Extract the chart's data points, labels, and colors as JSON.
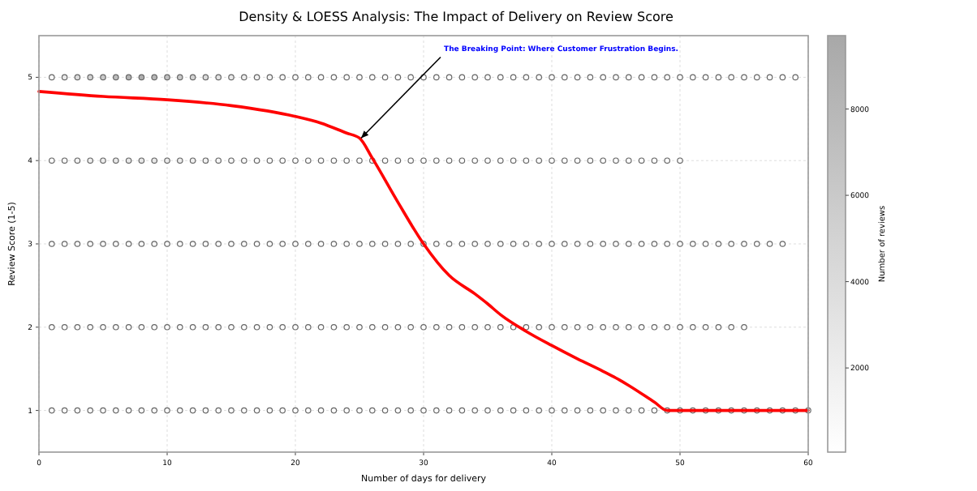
{
  "chart_data": {
    "type": "scatter",
    "title": "Density & LOESS Analysis: The Impact of Delivery on Review Score",
    "xlabel": "Number of days for delivery",
    "ylabel": "Review Score (1-5)",
    "clabel": "Number of reviews",
    "xlim": [
      0,
      60
    ],
    "ylim": [
      0.5,
      5.5
    ],
    "xticks": [
      0,
      10,
      20,
      30,
      40,
      50,
      60
    ],
    "yticks": [
      1,
      2,
      3,
      4,
      5
    ],
    "clim": [
      50,
      9700
    ],
    "cticks": [
      2000,
      4000,
      6000,
      8000
    ],
    "grid": true,
    "annotations": [
      {
        "text": "The Breaking Point: Where Customer Frustration Begins.",
        "x": 25,
        "y": 4.25
      }
    ],
    "series": [
      {
        "marker": "circle",
        "x": [
          1,
          2,
          3,
          4,
          5,
          6,
          7,
          8,
          9,
          10,
          11,
          12,
          13,
          14,
          15,
          16,
          17,
          18,
          19,
          20,
          21,
          22,
          23,
          24,
          25,
          26,
          27,
          28,
          29,
          30,
          31,
          32,
          33,
          34,
          35,
          36,
          37,
          38,
          39,
          40,
          41,
          42,
          43,
          44,
          45,
          46,
          47,
          48,
          49,
          50,
          51,
          52,
          53,
          54,
          55,
          56,
          57,
          58,
          59
        ],
        "values": [
          5,
          5,
          5,
          5,
          5,
          5,
          5,
          5,
          5,
          5,
          5,
          5,
          5,
          5,
          5,
          5,
          5,
          5,
          5,
          5,
          5,
          5,
          5,
          5,
          5,
          5,
          5,
          5,
          5,
          5,
          5,
          5,
          5,
          5,
          5,
          5,
          5,
          5,
          5,
          5,
          5,
          5,
          5,
          5,
          5,
          5,
          5,
          5,
          5,
          5,
          5,
          5,
          5,
          5,
          5,
          5,
          5,
          5,
          5
        ],
        "colors": [
          "#fbfbfb",
          "#e9e9e9",
          "#dbdbdb",
          "#d2d2d2",
          "#c9c9c9",
          "#bcbcbc",
          "#b3b3b3",
          "#aeaeae",
          "#b7b7b7",
          "#c0c0c0",
          "#c9c9c9",
          "#d2d2d2",
          "#dbdbdb",
          "#e3e3e3",
          "#e9e9e9",
          "#ededed",
          "#f1f1f1",
          "#f4f4f4",
          "#f6f6f6",
          "#f8f8f8",
          "#f9f9f9",
          "#fbfbfb",
          "#fcfcfc",
          "#fcfcfc",
          "#fdfdfd",
          "#fdfdfd",
          "#fefefe",
          "#fefefe",
          "#fefefe",
          "#fefefe",
          "#fefefe",
          "#fefefe",
          "#ffffff",
          "#ffffff",
          "#ffffff",
          "#ffffff",
          "#ffffff",
          "#ffffff",
          "#ffffff",
          "#ffffff",
          "#ffffff",
          "#ffffff",
          "#ffffff",
          "#ffffff",
          "#ffffff",
          "#ffffff",
          "#ffffff",
          "#ffffff",
          "#ffffff",
          "#ffffff",
          "#ffffff",
          "#ffffff",
          "#ffffff",
          "#ffffff",
          "#ffffff",
          "#ffffff",
          "#ffffff",
          "#ffffff",
          "#ffffff"
        ]
      },
      {
        "marker": "circle",
        "x": [
          1,
          2,
          3,
          4,
          5,
          6,
          7,
          8,
          9,
          10,
          11,
          12,
          13,
          14,
          15,
          16,
          17,
          18,
          19,
          20,
          21,
          22,
          23,
          24,
          25,
          26,
          27,
          28,
          29,
          30,
          31,
          32,
          33,
          34,
          35,
          36,
          37,
          38,
          39,
          40,
          41,
          42,
          43,
          44,
          45,
          46,
          47,
          48,
          49,
          50
        ],
        "values": [
          4,
          4,
          4,
          4,
          4,
          4,
          4,
          4,
          4,
          4,
          4,
          4,
          4,
          4,
          4,
          4,
          4,
          4,
          4,
          4,
          4,
          4,
          4,
          4,
          4,
          4,
          4,
          4,
          4,
          4,
          4,
          4,
          4,
          4,
          4,
          4,
          4,
          4,
          4,
          4,
          4,
          4,
          4,
          4,
          4,
          4,
          4,
          4,
          4,
          4
        ],
        "colors": [
          "#fefefe",
          "#f8f8f8",
          "#f4f4f4",
          "#f0f0f0",
          "#ededed",
          "#eaeaea",
          "#e8e8e8",
          "#e7e7e7",
          "#e9e9e9",
          "#ebebeb",
          "#ededed",
          "#f0f0f0",
          "#f3f3f3",
          "#f6f6f6",
          "#f7f7f7",
          "#f9f9f9",
          "#fafafa",
          "#fbfbfb",
          "#fcfcfc",
          "#fcfcfc",
          "#fdfdfd",
          "#fdfdfd",
          "#fefefe",
          "#fefefe",
          "#fefefe",
          "#fefefe",
          "#fefefe",
          "#ffffff",
          "#ffffff",
          "#ffffff",
          "#ffffff",
          "#ffffff",
          "#ffffff",
          "#ffffff",
          "#ffffff",
          "#ffffff",
          "#ffffff",
          "#ffffff",
          "#ffffff",
          "#ffffff",
          "#ffffff",
          "#ffffff",
          "#ffffff",
          "#ffffff",
          "#ffffff",
          "#ffffff",
          "#ffffff",
          "#ffffff",
          "#ffffff",
          "#ffffff"
        ]
      },
      {
        "marker": "circle",
        "x": [
          1,
          2,
          3,
          4,
          5,
          6,
          7,
          8,
          9,
          10,
          11,
          12,
          13,
          14,
          15,
          16,
          17,
          18,
          19,
          20,
          21,
          22,
          23,
          24,
          25,
          26,
          27,
          28,
          29,
          30,
          31,
          32,
          33,
          34,
          35,
          36,
          37,
          38,
          39,
          40,
          41,
          42,
          43,
          44,
          45,
          46,
          47,
          48,
          49,
          50,
          51,
          52,
          53,
          54,
          55,
          56,
          57,
          58
        ],
        "values": [
          3,
          3,
          3,
          3,
          3,
          3,
          3,
          3,
          3,
          3,
          3,
          3,
          3,
          3,
          3,
          3,
          3,
          3,
          3,
          3,
          3,
          3,
          3,
          3,
          3,
          3,
          3,
          3,
          3,
          3,
          3,
          3,
          3,
          3,
          3,
          3,
          3,
          3,
          3,
          3,
          3,
          3,
          3,
          3,
          3,
          3,
          3,
          3,
          3,
          3,
          3,
          3,
          3,
          3,
          3,
          3,
          3,
          3
        ],
        "colors": [
          "#ffffff",
          "#fdfdfd",
          "#fbfbfb",
          "#fafafa",
          "#f9f9f9",
          "#f9f9f9",
          "#f9f9f9",
          "#f9f9f9",
          "#f9f9f9",
          "#f9f9f9",
          "#fafafa",
          "#fbfbfb",
          "#fbfbfb",
          "#fcfcfc",
          "#fcfcfc",
          "#fdfdfd",
          "#fdfdfd",
          "#fdfdfd",
          "#fefefe",
          "#fefefe",
          "#fefefe",
          "#fefefe",
          "#fefefe",
          "#fefefe",
          "#fefefe",
          "#ffffff",
          "#ffffff",
          "#ffffff",
          "#ffffff",
          "#ffffff",
          "#ffffff",
          "#ffffff",
          "#ffffff",
          "#ffffff",
          "#ffffff",
          "#ffffff",
          "#ffffff",
          "#ffffff",
          "#ffffff",
          "#ffffff",
          "#ffffff",
          "#ffffff",
          "#ffffff",
          "#ffffff",
          "#ffffff",
          "#ffffff",
          "#ffffff",
          "#ffffff",
          "#ffffff",
          "#ffffff",
          "#ffffff",
          "#ffffff",
          "#ffffff",
          "#ffffff",
          "#ffffff",
          "#ffffff",
          "#ffffff",
          "#ffffff"
        ]
      },
      {
        "marker": "circle",
        "x": [
          1,
          2,
          3,
          4,
          5,
          6,
          7,
          8,
          9,
          10,
          11,
          12,
          13,
          14,
          15,
          16,
          17,
          18,
          19,
          20,
          21,
          22,
          23,
          24,
          25,
          26,
          27,
          28,
          29,
          30,
          31,
          32,
          33,
          34,
          35,
          36,
          37,
          38,
          39,
          40,
          41,
          42,
          43,
          44,
          45,
          46,
          47,
          48,
          49,
          50,
          51,
          52,
          53,
          54,
          55
        ],
        "values": [
          2,
          2,
          2,
          2,
          2,
          2,
          2,
          2,
          2,
          2,
          2,
          2,
          2,
          2,
          2,
          2,
          2,
          2,
          2,
          2,
          2,
          2,
          2,
          2,
          2,
          2,
          2,
          2,
          2,
          2,
          2,
          2,
          2,
          2,
          2,
          2,
          2,
          2,
          2,
          2,
          2,
          2,
          2,
          2,
          2,
          2,
          2,
          2,
          2,
          2,
          2,
          2,
          2,
          2,
          2
        ],
        "colors": [
          "#ffffff",
          "#fefefe",
          "#fefefe",
          "#fdfdfd",
          "#fdfdfd",
          "#fdfdfd",
          "#fdfdfd",
          "#fdfdfd",
          "#fdfdfd",
          "#fdfdfd",
          "#fdfdfd",
          "#fefefe",
          "#fefefe",
          "#fefefe",
          "#fefefe",
          "#fefefe",
          "#fefefe",
          "#ffffff",
          "#ffffff",
          "#ffffff",
          "#ffffff",
          "#ffffff",
          "#ffffff",
          "#ffffff",
          "#ffffff",
          "#ffffff",
          "#ffffff",
          "#ffffff",
          "#ffffff",
          "#ffffff",
          "#ffffff",
          "#ffffff",
          "#ffffff",
          "#ffffff",
          "#ffffff",
          "#ffffff",
          "#ffffff",
          "#ffffff",
          "#ffffff",
          "#ffffff",
          "#ffffff",
          "#ffffff",
          "#ffffff",
          "#ffffff",
          "#ffffff",
          "#ffffff",
          "#ffffff",
          "#ffffff",
          "#ffffff",
          "#ffffff",
          "#ffffff",
          "#ffffff",
          "#ffffff",
          "#ffffff",
          "#ffffff"
        ]
      },
      {
        "marker": "circle",
        "x": [
          1,
          2,
          3,
          4,
          5,
          6,
          7,
          8,
          9,
          10,
          11,
          12,
          13,
          14,
          15,
          16,
          17,
          18,
          19,
          20,
          21,
          22,
          23,
          24,
          25,
          26,
          27,
          28,
          29,
          30,
          31,
          32,
          33,
          34,
          35,
          36,
          37,
          38,
          39,
          40,
          41,
          42,
          43,
          44,
          45,
          46,
          47,
          48,
          49,
          50,
          51,
          52,
          53,
          54,
          55,
          56,
          57,
          58,
          59,
          60
        ],
        "values": [
          1,
          1,
          1,
          1,
          1,
          1,
          1,
          1,
          1,
          1,
          1,
          1,
          1,
          1,
          1,
          1,
          1,
          1,
          1,
          1,
          1,
          1,
          1,
          1,
          1,
          1,
          1,
          1,
          1,
          1,
          1,
          1,
          1,
          1,
          1,
          1,
          1,
          1,
          1,
          1,
          1,
          1,
          1,
          1,
          1,
          1,
          1,
          1,
          1,
          1,
          1,
          1,
          1,
          1,
          1,
          1,
          1,
          1,
          1,
          1
        ],
        "colors": [
          "#fefefe",
          "#fdfdfd",
          "#fbfbfb",
          "#fafafa",
          "#f9f9f9",
          "#f9f9f9",
          "#f9f9f9",
          "#f9f9f9",
          "#f9f9f9",
          "#f9f9f9",
          "#fafafa",
          "#fafafa",
          "#fbfbfb",
          "#fbfbfb",
          "#fcfcfc",
          "#fcfcfc",
          "#fcfcfc",
          "#fcfcfc",
          "#fdfdfd",
          "#fdfdfd",
          "#fdfdfd",
          "#fdfdfd",
          "#fdfdfd",
          "#fdfdfd",
          "#fdfdfd",
          "#fdfdfd",
          "#fdfdfd",
          "#fdfdfd",
          "#fdfdfd",
          "#fefefe",
          "#fefefe",
          "#fefefe",
          "#fefefe",
          "#fefefe",
          "#fefefe",
          "#fefefe",
          "#fefefe",
          "#fefefe",
          "#fefefe",
          "#ffffff",
          "#ffffff",
          "#ffffff",
          "#ffffff",
          "#ffffff",
          "#ffffff",
          "#ffffff",
          "#ffffff",
          "#ffffff",
          "#ffffff",
          "#ffffff",
          "#ffffff",
          "#ffffff",
          "#ffffff",
          "#ffffff",
          "#ffffff",
          "#ffffff",
          "#ffffff",
          "#ffffff",
          "#ffffff",
          "#ffffff"
        ]
      },
      {
        "type": "line",
        "marker": "none",
        "color": "#ff0000",
        "x": [
          0,
          5,
          10,
          15,
          20,
          22,
          24,
          25,
          26,
          28,
          30,
          32,
          34,
          35,
          36,
          38,
          40,
          42,
          44,
          45,
          46,
          48,
          49,
          60
        ],
        "values": [
          4.83,
          4.77,
          4.73,
          4.66,
          4.53,
          4.45,
          4.33,
          4.27,
          4.03,
          3.5,
          3.0,
          2.62,
          2.4,
          2.28,
          2.15,
          1.95,
          1.78,
          1.62,
          1.47,
          1.39,
          1.3,
          1.1,
          1.0,
          1.0
        ]
      }
    ]
  }
}
